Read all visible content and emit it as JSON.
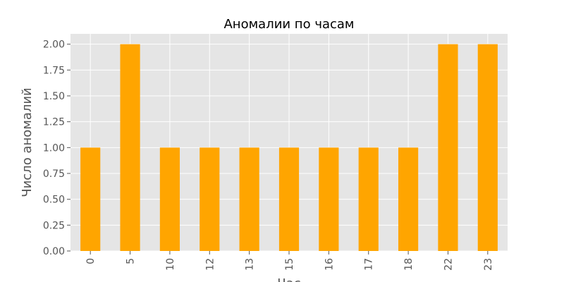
{
  "chart_data": {
    "type": "bar",
    "title": "Аномалии по часам",
    "xlabel": "Час",
    "ylabel": "Число аномалий",
    "categories": [
      "0",
      "5",
      "10",
      "12",
      "13",
      "15",
      "16",
      "17",
      "18",
      "22",
      "23"
    ],
    "values": [
      1,
      2,
      1,
      1,
      1,
      1,
      1,
      1,
      1,
      2,
      2
    ],
    "ylim": [
      0,
      2.1
    ],
    "yticks": [
      "0.00",
      "0.25",
      "0.50",
      "0.75",
      "1.00",
      "1.25",
      "1.50",
      "1.75",
      "2.00"
    ],
    "ytick_values": [
      0,
      0.25,
      0.5,
      0.75,
      1.0,
      1.25,
      1.5,
      1.75,
      2.0
    ],
    "grid": true,
    "bar_color": "#ffa500",
    "plot_background": "#e5e5e5",
    "grid_color": "#ffffff"
  }
}
